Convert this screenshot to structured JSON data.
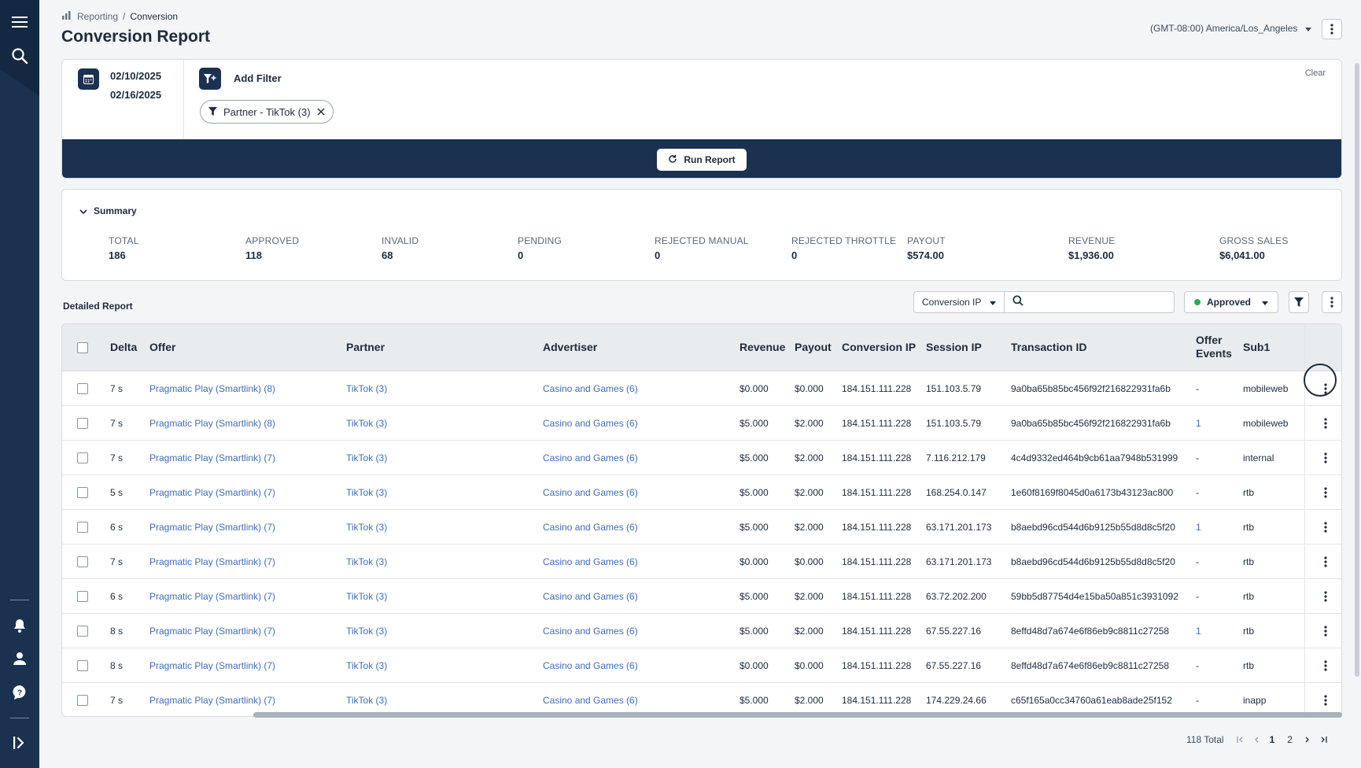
{
  "sidebar": {
    "icons": [
      "menu-icon",
      "search-icon",
      "bell-icon",
      "user-icon",
      "help-icon",
      "expand-icon"
    ]
  },
  "breadcrumb": {
    "parent": "Reporting",
    "separator": "/",
    "current": "Conversion"
  },
  "page": {
    "title": "Conversion Report",
    "timezone": "(GMT-08:00) America/Los_Angeles"
  },
  "filters": {
    "date_start": "02/10/2025",
    "date_end": "02/16/2025",
    "add_filter_label": "Add Filter",
    "chip_label": "Partner - TikTok (3)",
    "clear_label": "Clear",
    "run_label": "Run Report"
  },
  "summary": {
    "title": "Summary",
    "metrics": [
      {
        "label": "TOTAL",
        "value": "186"
      },
      {
        "label": "APPROVED",
        "value": "118"
      },
      {
        "label": "INVALID",
        "value": "68"
      },
      {
        "label": "PENDING",
        "value": "0"
      },
      {
        "label": "REJECTED MANUAL",
        "value": "0"
      },
      {
        "label": "REJECTED THROTTLE",
        "value": "0"
      },
      {
        "label": "PAYOUT",
        "value": "$574.00"
      },
      {
        "label": "REVENUE",
        "value": "$1,936.00"
      },
      {
        "label": "GROSS SALES",
        "value": "$6,041.00"
      }
    ]
  },
  "report": {
    "title": "Detailed Report",
    "search_field": "Conversion IP",
    "search_placeholder": "",
    "status_filter": "Approved",
    "columns": [
      "Delta",
      "Offer",
      "Partner",
      "Advertiser",
      "Revenue",
      "Payout",
      "Conversion IP",
      "Session IP",
      "Transaction ID",
      "Offer Events",
      "Sub1"
    ],
    "rows": [
      {
        "delta": "7 s",
        "offer": "Pragmatic Play (Smartlink) (8)",
        "partner": "TikTok (3)",
        "advertiser": "Casino and Games (6)",
        "revenue": "$0.000",
        "payout": "$0.000",
        "conv_ip": "184.151.111.228",
        "session_ip": "151.103.5.79",
        "txn": "9a0ba65b85bc456f92f216822931fa6b",
        "events": "-",
        "sub1": "mobileweb"
      },
      {
        "delta": "7 s",
        "offer": "Pragmatic Play (Smartlink) (8)",
        "partner": "TikTok (3)",
        "advertiser": "Casino and Games (6)",
        "revenue": "$5.000",
        "payout": "$2.000",
        "conv_ip": "184.151.111.228",
        "session_ip": "151.103.5.79",
        "txn": "9a0ba65b85bc456f92f216822931fa6b",
        "events": "1",
        "sub1": "mobileweb"
      },
      {
        "delta": "7 s",
        "offer": "Pragmatic Play (Smartlink) (7)",
        "partner": "TikTok (3)",
        "advertiser": "Casino and Games (6)",
        "revenue": "$5.000",
        "payout": "$2.000",
        "conv_ip": "184.151.111.228",
        "session_ip": "7.116.212.179",
        "txn": "4c4d9332ed464b9cb61aa7948b531999",
        "events": "-",
        "sub1": "internal"
      },
      {
        "delta": "5 s",
        "offer": "Pragmatic Play (Smartlink) (7)",
        "partner": "TikTok (3)",
        "advertiser": "Casino and Games (6)",
        "revenue": "$5.000",
        "payout": "$2.000",
        "conv_ip": "184.151.111.228",
        "session_ip": "168.254.0.147",
        "txn": "1e60f8169f8045d0a6173b43123ac800",
        "events": "-",
        "sub1": "rtb"
      },
      {
        "delta": "6 s",
        "offer": "Pragmatic Play (Smartlink) (7)",
        "partner": "TikTok (3)",
        "advertiser": "Casino and Games (6)",
        "revenue": "$5.000",
        "payout": "$2.000",
        "conv_ip": "184.151.111.228",
        "session_ip": "63.171.201.173",
        "txn": "b8aebd96cd544d6b9125b55d8d8c5f20",
        "events": "1",
        "sub1": "rtb"
      },
      {
        "delta": "7 s",
        "offer": "Pragmatic Play (Smartlink) (7)",
        "partner": "TikTok (3)",
        "advertiser": "Casino and Games (6)",
        "revenue": "$0.000",
        "payout": "$0.000",
        "conv_ip": "184.151.111.228",
        "session_ip": "63.171.201.173",
        "txn": "b8aebd96cd544d6b9125b55d8d8c5f20",
        "events": "-",
        "sub1": "rtb"
      },
      {
        "delta": "6 s",
        "offer": "Pragmatic Play (Smartlink) (7)",
        "partner": "TikTok (3)",
        "advertiser": "Casino and Games (6)",
        "revenue": "$5.000",
        "payout": "$2.000",
        "conv_ip": "184.151.111.228",
        "session_ip": "63.72.202.200",
        "txn": "59bb5d87754d4e15ba50a851c3931092",
        "events": "-",
        "sub1": "rtb"
      },
      {
        "delta": "8 s",
        "offer": "Pragmatic Play (Smartlink) (7)",
        "partner": "TikTok (3)",
        "advertiser": "Casino and Games (6)",
        "revenue": "$5.000",
        "payout": "$2.000",
        "conv_ip": "184.151.111.228",
        "session_ip": "67.55.227.16",
        "txn": "8effd48d7a674e6f86eb9c8811c27258",
        "events": "1",
        "sub1": "rtb"
      },
      {
        "delta": "8 s",
        "offer": "Pragmatic Play (Smartlink) (7)",
        "partner": "TikTok (3)",
        "advertiser": "Casino and Games (6)",
        "revenue": "$0.000",
        "payout": "$0.000",
        "conv_ip": "184.151.111.228",
        "session_ip": "67.55.227.16",
        "txn": "8effd48d7a674e6f86eb9c8811c27258",
        "events": "-",
        "sub1": "rtb"
      },
      {
        "delta": "7 s",
        "offer": "Pragmatic Play (Smartlink) (7)",
        "partner": "TikTok (3)",
        "advertiser": "Casino and Games (6)",
        "revenue": "$5.000",
        "payout": "$2.000",
        "conv_ip": "184.151.111.228",
        "session_ip": "174.229.24.66",
        "txn": "c65f165a0cc34760a61eab8ade25f152",
        "events": "-",
        "sub1": "inapp"
      }
    ]
  },
  "pagination": {
    "total": "118 Total",
    "pages": [
      "1",
      "2"
    ],
    "current": "1"
  }
}
